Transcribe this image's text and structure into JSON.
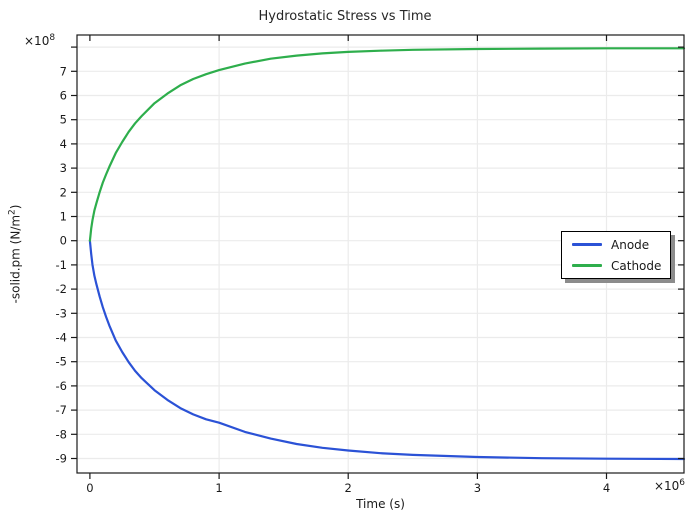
{
  "title": "Hydrostatic Stress vs Time",
  "colors": {
    "anode": "#2b52d6",
    "cathode": "#2eae4c",
    "grid": "#ebebeb",
    "axis": "#1a1a1a",
    "text": "#1a1a1a",
    "background": "#ffffff",
    "legend_shadow": "#8c8c8c"
  },
  "x_axis": {
    "label": "Time (s)",
    "multiplier_base": "×10",
    "multiplier_sup": "6",
    "min": -0.1,
    "max": 4.6,
    "ticks": [
      0,
      1,
      2,
      3,
      4
    ],
    "grid": [
      1,
      2,
      3,
      4
    ]
  },
  "y_axis": {
    "label_prefix": "-solid.pm (N/m",
    "label_sup": "2",
    "label_suffix": ")",
    "multiplier_base": "×10",
    "multiplier_sup": "8",
    "min": -9.6,
    "max": 8.5,
    "ticks": [
      -9,
      -8,
      -7,
      -6,
      -5,
      -4,
      -3,
      -2,
      -1,
      0,
      1,
      2,
      3,
      4,
      5,
      6,
      7,
      8
    ],
    "labeled_ticks": [
      -9,
      -8,
      -7,
      -6,
      -5,
      -4,
      -3,
      -2,
      -1,
      0,
      1,
      2,
      3,
      4,
      5,
      6,
      7
    ]
  },
  "legend": {
    "items": [
      {
        "label": "Anode",
        "color": "#2b52d6"
      },
      {
        "label": "Cathode",
        "color": "#2eae4c"
      }
    ]
  },
  "chart_data": {
    "type": "line",
    "title": "Hydrostatic Stress vs Time",
    "xlabel": "Time (s)",
    "ylabel": "-solid.pm (N/m²)",
    "x_unit": "10^6 s",
    "y_unit": "10^8 N/m²",
    "xlim": [
      -0.1,
      4.6
    ],
    "ylim": [
      -9.6,
      8.5
    ],
    "grid": true,
    "legend_position": "middle-right",
    "x": [
      0,
      0.01,
      0.02,
      0.035,
      0.05,
      0.075,
      0.1,
      0.125,
      0.15,
      0.2,
      0.25,
      0.3,
      0.35,
      0.4,
      0.5,
      0.6,
      0.7,
      0.8,
      0.9,
      1.0,
      1.2,
      1.4,
      1.6,
      1.8,
      2.0,
      2.25,
      2.5,
      3.0,
      3.5,
      4.0,
      4.6
    ],
    "series": [
      {
        "name": "Anode",
        "color": "#2b52d6",
        "y": [
          0,
          -0.55,
          -1.0,
          -1.45,
          -1.8,
          -2.3,
          -2.75,
          -3.15,
          -3.5,
          -4.12,
          -4.6,
          -5.02,
          -5.38,
          -5.68,
          -6.18,
          -6.58,
          -6.92,
          -7.18,
          -7.38,
          -7.52,
          -7.9,
          -8.18,
          -8.4,
          -8.56,
          -8.67,
          -8.78,
          -8.85,
          -8.94,
          -8.99,
          -9.01,
          -9.02
        ]
      },
      {
        "name": "Cathode",
        "color": "#2eae4c",
        "y": [
          0,
          0.5,
          0.85,
          1.25,
          1.55,
          2.0,
          2.4,
          2.74,
          3.05,
          3.62,
          4.08,
          4.5,
          4.85,
          5.15,
          5.68,
          6.08,
          6.42,
          6.68,
          6.88,
          7.05,
          7.32,
          7.52,
          7.65,
          7.74,
          7.8,
          7.85,
          7.89,
          7.92,
          7.94,
          7.95,
          7.95
        ]
      }
    ]
  }
}
